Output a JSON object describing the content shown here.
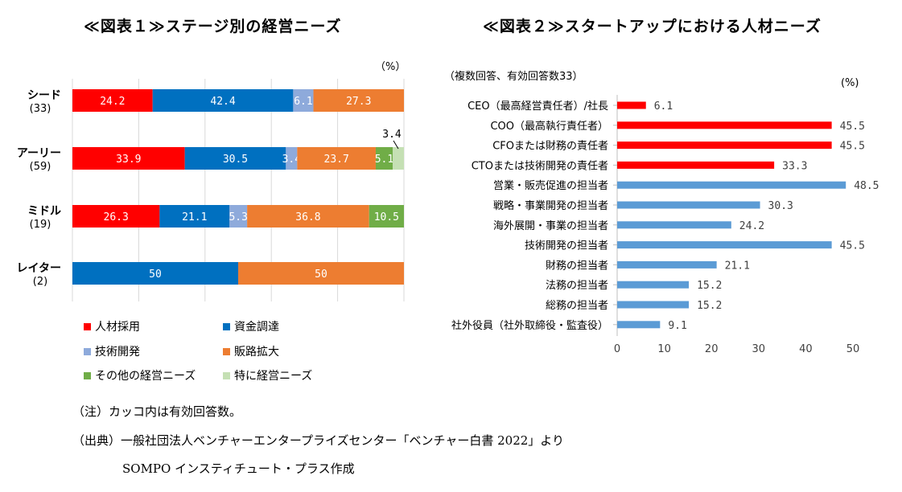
{
  "titles": {
    "chart1": "≪図表１≫ステージ別の経営ニーズ",
    "chart2": "≪図表２≫スタートアップにおける人材ニーズ"
  },
  "chart1_unit": "（%）",
  "chart2_unit": "(%)",
  "chart2_note": "（複数回答、有効回答数33）",
  "notes": {
    "note": "（注）カッコ内は有効回答数。",
    "source": "（出典）一般社団法人ベンチャーエンタープライズセンター「ベンチャー白書 2022」より",
    "author": "SOMPO インスティチュート・プラス作成"
  },
  "chart_data": [
    {
      "type": "bar",
      "orientation": "horizontal",
      "stacked": true,
      "title": "≪図表１≫ステージ別の経営ニーズ",
      "unit": "（%）",
      "categories": [
        "シード",
        "アーリー",
        "ミドル",
        "レイター"
      ],
      "category_counts": [
        "(33)",
        "(59)",
        "(19)",
        "(2)"
      ],
      "xlim": [
        0,
        100
      ],
      "series": [
        {
          "name": "人材採用",
          "color": "#ff0000",
          "values": [
            24.2,
            33.9,
            26.3,
            0
          ]
        },
        {
          "name": "資金調達",
          "color": "#0070c0",
          "values": [
            42.4,
            30.5,
            21.1,
            50
          ]
        },
        {
          "name": "技術開発",
          "color": "#8eaadb",
          "values": [
            6.1,
            3.4,
            5.3,
            0
          ]
        },
        {
          "name": "販路拡大",
          "color": "#ed7d31",
          "values": [
            27.3,
            23.7,
            36.8,
            50
          ]
        },
        {
          "name": "その他の経営ニーズ",
          "color": "#70ad47",
          "values": [
            0,
            5.1,
            10.5,
            0
          ]
        },
        {
          "name": "特に経営ニーズ",
          "color": "#c5e0b4",
          "values": [
            0,
            3.4,
            0,
            0
          ]
        }
      ],
      "labels": [
        [
          "24.2",
          "42.4",
          "6.1",
          "27.3",
          "",
          ""
        ],
        [
          "33.9",
          "30.5",
          "3.4",
          "23.7",
          "5.1",
          "3.4"
        ],
        [
          "26.3",
          "21.1",
          "5.3",
          "36.8",
          "10.5",
          ""
        ],
        [
          "",
          "50",
          "",
          "50",
          "",
          ""
        ]
      ],
      "legend_position": "bottom",
      "grid": true
    },
    {
      "type": "bar",
      "orientation": "horizontal",
      "title": "≪図表２≫スタートアップにおける人材ニーズ",
      "unit": "(%)",
      "categories": [
        "CEO（最高経営責任者）/社長",
        "COO（最高執行責任者）",
        "CFOまたは財務の責任者",
        "CTOまたは技術開発の責任者",
        "営業・販売促進の担当者",
        "戦略・事業開発の担当者",
        "海外展開・事業の担当者",
        "技術開発の担当者",
        "財務の担当者",
        "法務の担当者",
        "総務の担当者",
        "社外役員（社外取締役・監査役）"
      ],
      "values": [
        6.1,
        45.5,
        45.5,
        33.3,
        48.5,
        30.3,
        24.2,
        45.5,
        21.1,
        15.2,
        15.2,
        9.1
      ],
      "value_labels": [
        "6.1",
        "45.5",
        "45.5",
        "33.3",
        "48.5",
        "30.3",
        "24.2",
        "45.5",
        "21.1",
        "15.2",
        "15.2",
        "9.1"
      ],
      "colors": [
        "#ff0000",
        "#ff0000",
        "#ff0000",
        "#ff0000",
        "#5b9bd5",
        "#5b9bd5",
        "#5b9bd5",
        "#5b9bd5",
        "#5b9bd5",
        "#5b9bd5",
        "#5b9bd5",
        "#5b9bd5"
      ],
      "xticks": [
        "0",
        "10",
        "20",
        "30",
        "40",
        "50"
      ],
      "xlim": [
        0,
        50
      ],
      "grid": false
    }
  ]
}
